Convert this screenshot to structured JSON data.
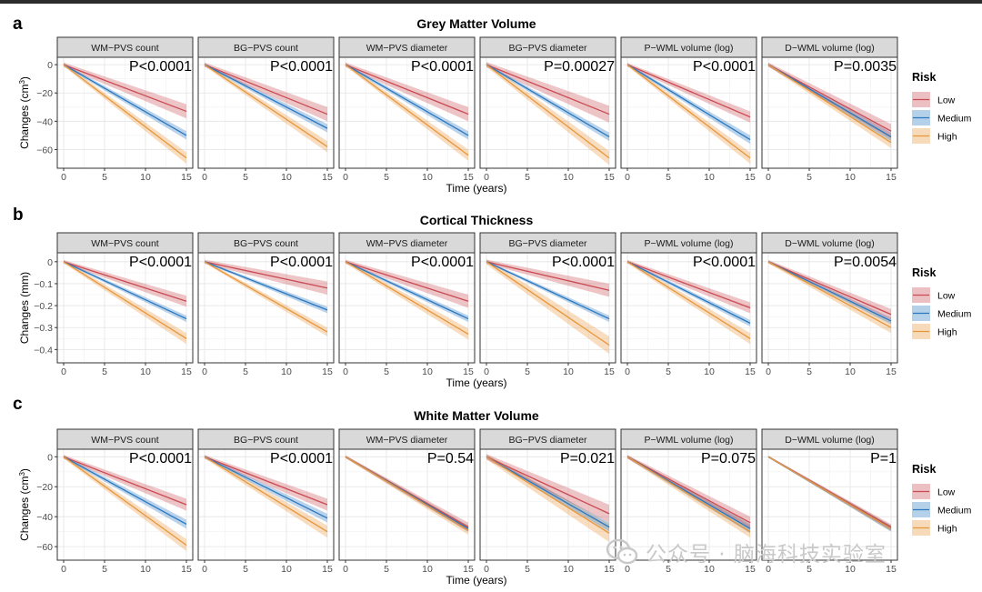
{
  "colors": {
    "Low": "#c94a52",
    "Medium": "#2a78c0",
    "High": "#e8963a",
    "strip": "#d9d9d9"
  },
  "legend": {
    "title": "Risk",
    "items": [
      "Low",
      "Medium",
      "High"
    ]
  },
  "x_axis": {
    "label": "Time (years)",
    "ticks": [
      "0",
      "5",
      "10",
      "15"
    ]
  },
  "facets": [
    "WM−PVS count",
    "BG−PVS count",
    "WM−PVS diameter",
    "BG−PVS diameter",
    "P−WML volume (log)",
    "D−WML volume (log)"
  ],
  "watermark": "公众号 · 脑海科技实验室",
  "chart_data": [
    {
      "type": "line",
      "panel": "a",
      "title": "Grey Matter Volume",
      "ylabel": "Changes (cm³)",
      "xlabel": "Time (years)",
      "xlim": [
        0,
        15
      ],
      "ylim": [
        -70,
        2
      ],
      "yticks": [
        0,
        -20,
        -40,
        -60
      ],
      "series_names": [
        "Low",
        "Medium",
        "High"
      ],
      "subplots": [
        {
          "facet": "WM−PVS count",
          "p_value": "P<0.0001",
          "end": {
            "Low": -33,
            "Medium": -50,
            "High": -66
          },
          "band": {
            "Low": 5,
            "Medium": 3,
            "High": 4
          }
        },
        {
          "facet": "BG−PVS count",
          "p_value": "P<0.0001",
          "end": {
            "Low": -35,
            "Medium": -45,
            "High": -58
          },
          "band": {
            "Low": 5,
            "Medium": 3,
            "High": 4
          }
        },
        {
          "facet": "WM−PVS diameter",
          "p_value": "P<0.0001",
          "end": {
            "Low": -35,
            "Medium": -50,
            "High": -64
          },
          "band": {
            "Low": 5,
            "Medium": 3,
            "High": 4
          }
        },
        {
          "facet": "BG−PVS diameter",
          "p_value": "P=0.00027",
          "end": {
            "Low": -35,
            "Medium": -51,
            "High": -66
          },
          "band": {
            "Low": 6,
            "Medium": 3,
            "High": 5
          }
        },
        {
          "facet": "P−WML volume (log)",
          "p_value": "P<0.0001",
          "end": {
            "Low": -37,
            "Medium": -53,
            "High": -66
          },
          "band": {
            "Low": 4,
            "Medium": 3,
            "High": 4
          }
        },
        {
          "facet": "D−WML volume (log)",
          "p_value": "P=0.0035",
          "end": {
            "Low": -47,
            "Medium": -51,
            "High": -55
          },
          "band": {
            "Low": 5,
            "Medium": 3,
            "High": 4
          }
        }
      ]
    },
    {
      "type": "line",
      "panel": "b",
      "title": "Cortical Thickness",
      "ylabel": "Changes (mm)",
      "xlabel": "Time (years)",
      "xlim": [
        0,
        15
      ],
      "ylim": [
        -0.44,
        0.02
      ],
      "yticks": [
        0.0,
        -0.1,
        -0.2,
        -0.3,
        -0.4
      ],
      "series_names": [
        "Low",
        "Medium",
        "High"
      ],
      "subplots": [
        {
          "facet": "WM−PVS count",
          "p_value": "P<0.0001",
          "end": {
            "Low": -0.18,
            "Medium": -0.26,
            "High": -0.35
          },
          "band": {
            "Low": 0.025,
            "Medium": 0.015,
            "High": 0.025
          }
        },
        {
          "facet": "BG−PVS count",
          "p_value": "P<0.0001",
          "end": {
            "Low": -0.12,
            "Medium": -0.22,
            "High": -0.32
          },
          "band": {
            "Low": 0.03,
            "Medium": 0.015,
            "High": 0.02
          }
        },
        {
          "facet": "WM−PVS diameter",
          "p_value": "P<0.0001",
          "end": {
            "Low": -0.18,
            "Medium": -0.26,
            "High": -0.33
          },
          "band": {
            "Low": 0.03,
            "Medium": 0.015,
            "High": 0.025
          }
        },
        {
          "facet": "BG−PVS diameter",
          "p_value": "P<0.0001",
          "end": {
            "Low": -0.13,
            "Medium": -0.26,
            "High": -0.38
          },
          "band": {
            "Low": 0.03,
            "Medium": 0.015,
            "High": 0.04
          }
        },
        {
          "facet": "P−WML volume (log)",
          "p_value": "P<0.0001",
          "end": {
            "Low": -0.21,
            "Medium": -0.28,
            "High": -0.35
          },
          "band": {
            "Low": 0.025,
            "Medium": 0.015,
            "High": 0.025
          }
        },
        {
          "facet": "D−WML volume (log)",
          "p_value": "P=0.0054",
          "end": {
            "Low": -0.24,
            "Medium": -0.27,
            "High": -0.3
          },
          "band": {
            "Low": 0.025,
            "Medium": 0.015,
            "High": 0.025
          }
        }
      ]
    },
    {
      "type": "line",
      "panel": "c",
      "title": "White Matter Volume",
      "ylabel": "Changes (cm³)",
      "xlabel": "Time (years)",
      "xlim": [
        0,
        15
      ],
      "ylim": [
        -66,
        2
      ],
      "yticks": [
        0,
        -20,
        -40,
        -60
      ],
      "series_names": [
        "Low",
        "Medium",
        "High"
      ],
      "subplots": [
        {
          "facet": "WM−PVS count",
          "p_value": "P<0.0001",
          "end": {
            "Low": -32,
            "Medium": -45,
            "High": -59
          },
          "band": {
            "Low": 4,
            "Medium": 3,
            "High": 4
          }
        },
        {
          "facet": "BG−PVS count",
          "p_value": "P<0.0001",
          "end": {
            "Low": -32,
            "Medium": -41,
            "High": -50
          },
          "band": {
            "Low": 4,
            "Medium": 3,
            "High": 4
          }
        },
        {
          "facet": "WM−PVS diameter",
          "p_value": "P=0.54",
          "end": {
            "Low": -47,
            "Medium": -48,
            "High": -49
          },
          "band": {
            "Low": 3,
            "Medium": 2,
            "High": 3
          }
        },
        {
          "facet": "BG−PVS diameter",
          "p_value": "P=0.021",
          "end": {
            "Low": -38,
            "Medium": -47,
            "High": -51
          },
          "band": {
            "Low": 6,
            "Medium": 3,
            "High": 6
          }
        },
        {
          "facet": "P−WML volume (log)",
          "p_value": "P=0.075",
          "end": {
            "Low": -44,
            "Medium": -48,
            "High": -50
          },
          "band": {
            "Low": 4,
            "Medium": 3,
            "High": 4
          }
        },
        {
          "facet": "D−WML volume (log)",
          "p_value": "P=1",
          "end": {
            "Low": -47,
            "Medium": -48,
            "High": -48
          },
          "band": {
            "Low": 2,
            "Medium": 2,
            "High": 2
          }
        }
      ]
    }
  ]
}
